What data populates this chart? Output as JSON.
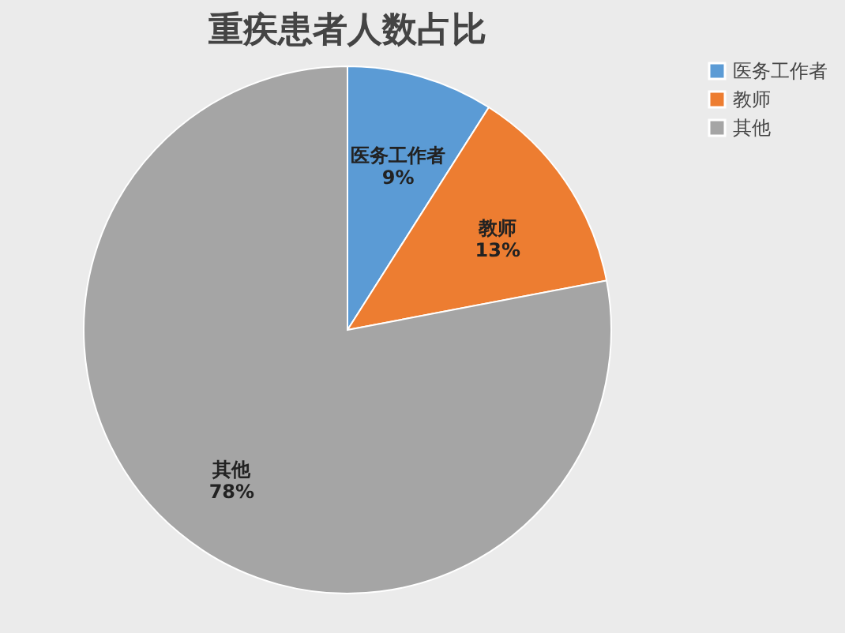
{
  "chart_data": {
    "type": "pie",
    "title": "重疾患者人数占比",
    "categories": [
      "医务工作者",
      "教师",
      "其他"
    ],
    "values": [
      9,
      13,
      78
    ],
    "colors": [
      "#5b9bd5",
      "#ed7d31",
      "#a5a5a5"
    ],
    "value_labels": [
      "9%",
      "13%",
      "78%"
    ],
    "legend": "right"
  }
}
